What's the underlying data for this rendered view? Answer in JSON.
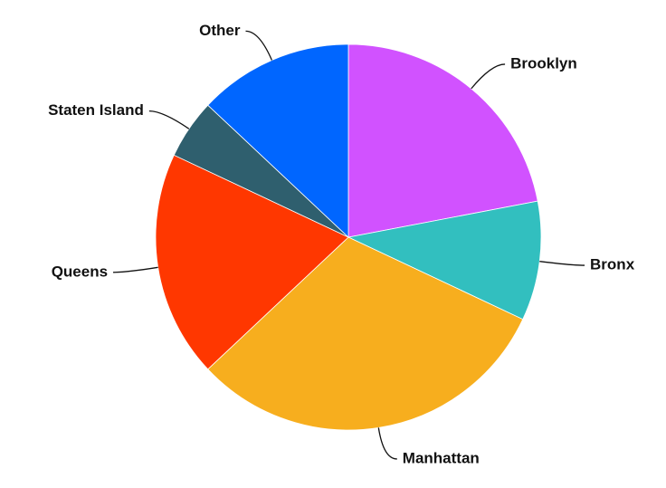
{
  "chart_data": {
    "type": "pie",
    "categories": [
      "Brooklyn",
      "Bronx",
      "Manhattan",
      "Queens",
      "Staten Island",
      "Other"
    ],
    "values": [
      22,
      10,
      31,
      19,
      5,
      13
    ],
    "colors": [
      "#d152ff",
      "#32bfbf",
      "#f7ae1e",
      "#ff3700",
      "#2f5f6e",
      "#0066ff"
    ]
  }
}
